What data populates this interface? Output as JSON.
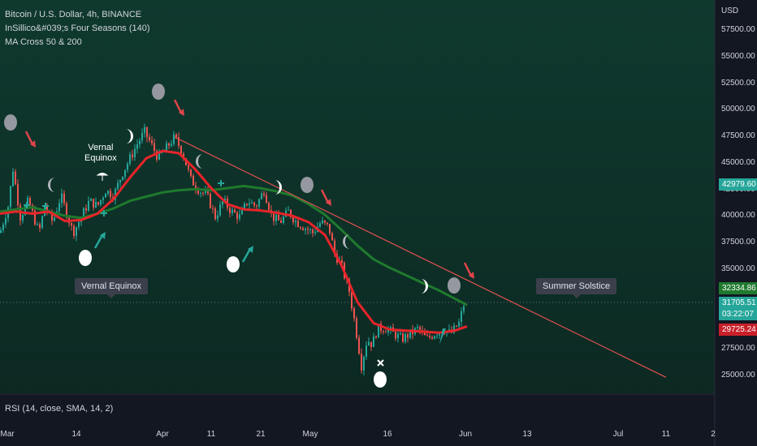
{
  "legend": {
    "symbol": "Bitcoin / U.S. Dollar, 4h, BINANCE",
    "indicator_seasons": "InSillico&#039;s Four Seasons (140)",
    "indicator_ma": "MA Cross 50 & 200"
  },
  "rsi_label": "RSI (14, close, SMA, 14, 2)",
  "currency": "USD",
  "callouts": {
    "vernal": "Vernal Equinox",
    "summer": "Summer Solstice"
  },
  "note_vernal": [
    "Vernal",
    "Equinox"
  ],
  "price_badges": {
    "ma_upper": "42979.60",
    "ma_mid": "32334.86",
    "last": "31705.51",
    "countdown": "03:22:07",
    "ma_lower": "29725.24"
  },
  "colors": {
    "background": "#131722",
    "area_gradient": "#0d3a2c",
    "candle_up": "#26a69a",
    "candle_down": "#ef5350",
    "ma_fast": "#e8242a",
    "ma_slow": "#1f7a2e",
    "trendline": "#e05050",
    "arrow_down": "#e0454b",
    "arrow_up": "#26a69a"
  },
  "chart_data": {
    "type": "line",
    "title": "Bitcoin / U.S. Dollar, 4h, BINANCE",
    "xlabel": "",
    "ylabel": "USD",
    "ylim": [
      23400,
      60400
    ],
    "y_ticks": [
      "57500.00",
      "55000.00",
      "52500.00",
      "50000.00",
      "47500.00",
      "45000.00",
      "42500.00",
      "40000.00",
      "37500.00",
      "35000.00",
      "27500.00",
      "25000.00"
    ],
    "x_ticks": [
      "Mar",
      "14",
      "Apr",
      "11",
      "21",
      "May",
      "16",
      "Jun",
      "13",
      "Jul",
      "11",
      "2"
    ],
    "grid": false,
    "series": [
      {
        "name": "Price",
        "x": [
          0,
          10,
          16,
          25,
          35,
          48,
          55,
          65,
          75,
          90,
          100,
          110,
          120,
          130,
          140,
          150,
          160,
          170,
          178,
          185,
          195,
          205,
          215,
          225,
          235,
          245,
          255,
          265,
          275,
          285,
          295,
          305,
          315,
          325,
          335,
          345,
          355,
          365,
          375,
          385,
          395,
          405,
          412,
          420,
          430,
          438,
          445,
          452,
          458,
          465,
          475,
          485,
          495,
          505,
          515,
          525,
          535,
          545,
          555,
          565,
          572
        ],
        "values": [
          38500,
          41000,
          44500,
          40000,
          41500,
          38500,
          41000,
          39500,
          42000,
          38500,
          40000,
          41500,
          41000,
          42500,
          42000,
          44000,
          45500,
          47000,
          48000,
          47000,
          45500,
          46500,
          47500,
          46000,
          43500,
          42500,
          42000,
          40000,
          41500,
          40500,
          40000,
          41500,
          41000,
          42500,
          40000,
          39500,
          40500,
          39500,
          39000,
          38500,
          39500,
          39000,
          36500,
          35500,
          33000,
          29500,
          26000,
          28500,
          28000,
          29500,
          29500,
          29000,
          28500,
          29000,
          29500,
          28500,
          29000,
          29500,
          29000,
          30000,
          32000
        ]
      },
      {
        "name": "MA 50",
        "x": [
          0,
          20,
          40,
          60,
          80,
          100,
          120,
          140,
          160,
          180,
          200,
          220,
          240,
          260,
          280,
          300,
          320,
          340,
          360,
          380,
          400,
          420,
          440,
          460,
          480,
          500,
          520,
          540,
          560,
          575
        ],
        "values": [
          40300,
          40500,
          40300,
          40500,
          39600,
          39700,
          40300,
          41700,
          43700,
          45500,
          46200,
          46000,
          44500,
          42700,
          41200,
          40700,
          40600,
          40400,
          40100,
          39500,
          38300,
          35500,
          32000,
          30000,
          29400,
          29300,
          29200,
          29100,
          29300,
          29700
        ]
      },
      {
        "name": "MA 200",
        "x": [
          0,
          20,
          40,
          60,
          80,
          100,
          120,
          140,
          160,
          180,
          200,
          220,
          240,
          260,
          280,
          300,
          320,
          340,
          360,
          380,
          400,
          420,
          440,
          460,
          480,
          500,
          520,
          540,
          560,
          575
        ],
        "values": [
          40500,
          40700,
          40900,
          40500,
          40100,
          39900,
          40300,
          40800,
          41500,
          41900,
          42300,
          42500,
          42600,
          42500,
          42700,
          42900,
          42700,
          42400,
          42000,
          41200,
          40200,
          38800,
          37300,
          36000,
          35200,
          34500,
          33800,
          33100,
          32300,
          31700
        ]
      },
      {
        "name": "Trendline",
        "x": [
          215,
          820
        ],
        "values": [
          47500,
          24900
        ]
      }
    ]
  }
}
